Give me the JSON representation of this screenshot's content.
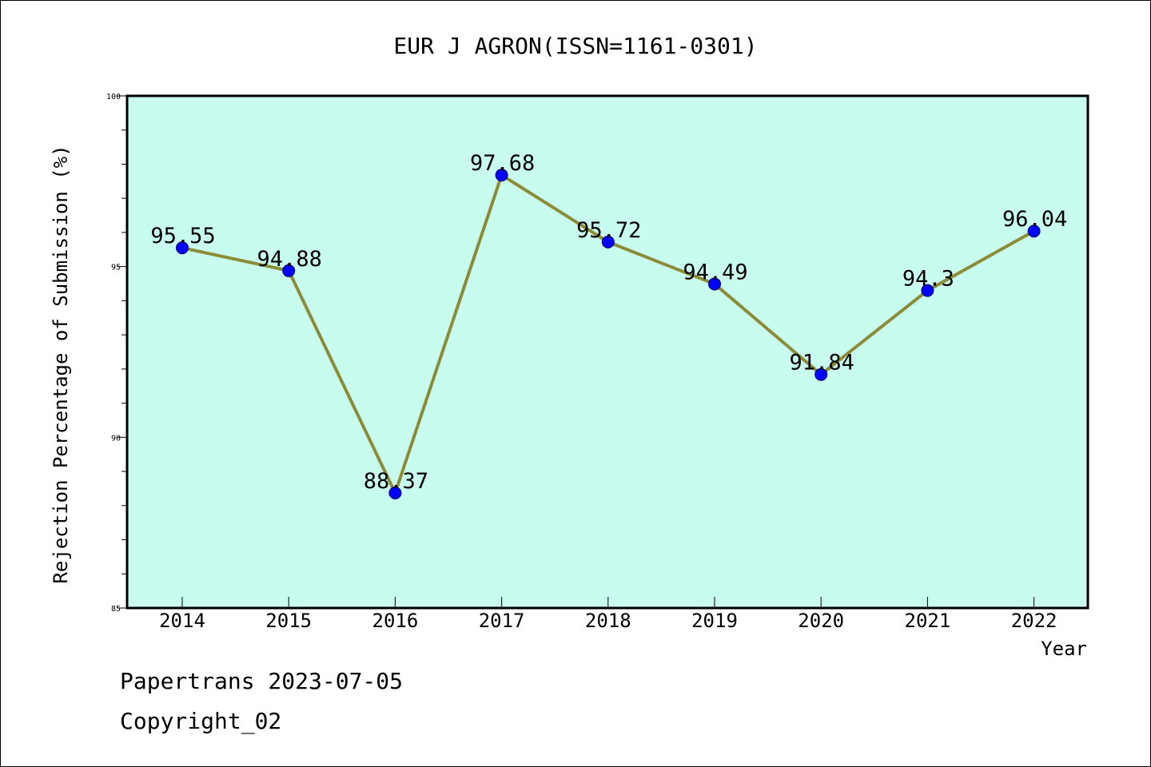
{
  "chart_data": {
    "type": "line",
    "title": "EUR J AGRON(ISSN=1161-0301)",
    "xlabel": "Year",
    "ylabel": "Rejection Percentage of Submission (%)",
    "categories": [
      "2014",
      "2015",
      "2016",
      "2017",
      "2018",
      "2019",
      "2020",
      "2021",
      "2022"
    ],
    "series": [
      {
        "values": [
          95.55,
          94.88,
          88.37,
          97.68,
          95.72,
          94.49,
          91.84,
          94.3,
          96.04
        ],
        "data_labels": [
          "95.55",
          "94.88",
          "88.37",
          "97.68",
          "95.72",
          "94.49",
          "91.84",
          "94.3",
          "96.04"
        ]
      }
    ],
    "ylim": [
      85,
      100
    ],
    "yticks": [
      "85",
      "90",
      "95",
      "100"
    ],
    "ytick_values": [
      85,
      90,
      95,
      100
    ],
    "minor_tick_step": 1,
    "grid": false,
    "colors": {
      "plot_background": "#c8fcee",
      "line": "#8b8b38",
      "marker": "#0000ff"
    }
  },
  "footer": {
    "line1": "Papertrans 2023-07-05",
    "line2": "Copyright_02"
  }
}
